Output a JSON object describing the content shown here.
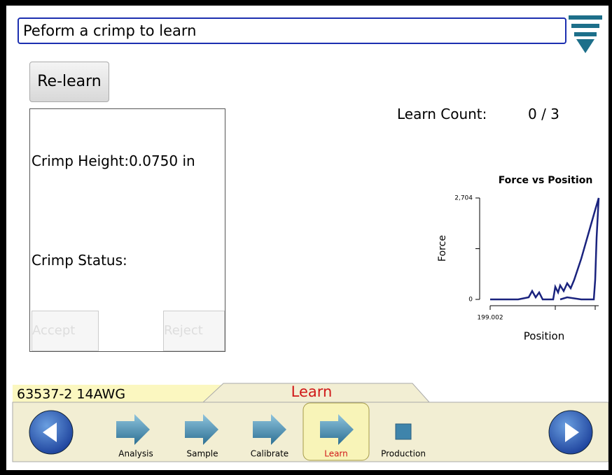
{
  "prompt": {
    "text": "Peform a crimp to learn"
  },
  "relearn_button": "Re-learn",
  "panel": {
    "crimp_height": "Crimp Height:0.0750 in",
    "crimp_status": "Crimp Status:",
    "accept": "Accept",
    "reject": "Reject"
  },
  "learn_count": {
    "label": "Learn Count:",
    "value": "0 / 3"
  },
  "chart": {
    "type": "line",
    "title": "Force vs Position",
    "x_label": "Position",
    "y_label": "Force",
    "x": [
      199.002,
      199.042,
      199.057,
      199.062,
      199.067,
      199.072,
      199.077,
      199.092,
      199.095,
      199.099,
      199.102,
      199.107,
      199.112,
      199.117,
      199.122,
      199.132,
      199.142,
      199.152,
      199.157,
      199.154,
      199.152,
      199.15,
      199.132,
      199.112,
      199.102
    ],
    "series": [
      {
        "color": "#1a237e",
        "values": [
          0,
          0,
          56,
          224,
          56,
          186,
          0,
          0,
          336,
          186,
          373,
          224,
          429,
          298,
          522,
          1081,
          1734,
          2387,
          2704,
          1641,
          522,
          0,
          0,
          56,
          0
        ]
      }
    ],
    "xlim": [
      199.002,
      199.157
    ],
    "ylim": [
      0,
      2704
    ],
    "xticks": [
      199.002,
      {
        "value": 199.095,
        "label": null
      },
      {
        "value": 199.152,
        "label": null
      }
    ],
    "yticks": [
      0,
      {
        "value": 1352,
        "label": null
      },
      {
        "value": 2704,
        "label": "2,704"
      }
    ]
  },
  "part_label": "63537-2 14AWG",
  "current_tab": "Learn",
  "steps": [
    "Analysis",
    "Sample",
    "Calibrate",
    "Learn",
    "Production"
  ]
}
